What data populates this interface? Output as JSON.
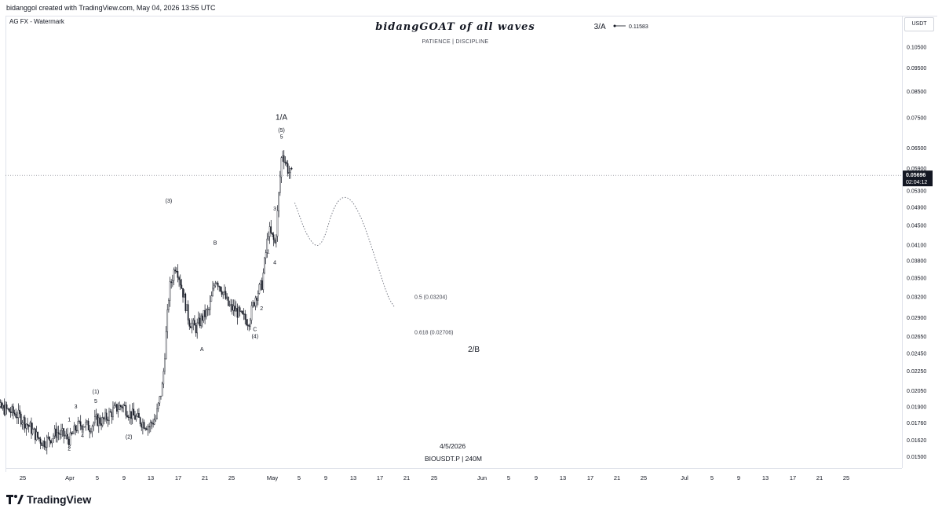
{
  "header": {
    "credit": "bidanggol created with TradingView.com, May 04, 2026 13:55 UTC"
  },
  "watermark": {
    "label": "AG FX - Watermark",
    "title": "bidangGOAT of all waves",
    "subtitle": "PATIENCE | DISCIPLINE"
  },
  "currency": "USDT",
  "legend": {
    "date": "4/5/2026",
    "symbol": "BIOUSDT.P | 240M"
  },
  "footer": {
    "brand": "TradingView"
  },
  "colors": {
    "candle": "#131722",
    "grid_line": "#e0e3eb",
    "price_tag_bg": "#131722",
    "dotted_line": "#787b86"
  },
  "chart_data": {
    "type": "candlestick",
    "symbol": "BIOUSDT.P",
    "interval": "240M",
    "y_axis": {
      "scale": "log",
      "ticks": [
        "0.11500",
        "0.10500",
        "0.09500",
        "0.08500",
        "0.07500",
        "0.06500",
        "0.05900",
        "0.05300",
        "0.04900",
        "0.04500",
        "0.04100",
        "0.03800",
        "0.03500",
        "0.03200",
        "0.02900",
        "0.02650",
        "0.02450",
        "0.02250",
        "0.02050",
        "0.01900",
        "0.01760",
        "0.01620",
        "0.01500"
      ],
      "ylim": [
        0.0146,
        0.118
      ]
    },
    "x_axis": {
      "ticks": [
        "25",
        "Apr",
        "5",
        "9",
        "13",
        "17",
        "21",
        "25",
        "May",
        "5",
        "9",
        "13",
        "17",
        "21",
        "25",
        "Jun",
        "5",
        "9",
        "13",
        "17",
        "21",
        "25",
        "Jul",
        "5",
        "9",
        "13",
        "17",
        "21",
        "25"
      ]
    },
    "current_price": {
      "value": "0.05696",
      "countdown": "02:04:12"
    },
    "price_path": [
      [
        "Mar 22",
        0.0188
      ],
      [
        "Mar 24",
        0.0183
      ],
      [
        "Mar 25",
        0.0178
      ],
      [
        "Mar 26",
        0.0172
      ],
      [
        "Mar 27",
        0.0165
      ],
      [
        "Mar 28",
        0.016
      ],
      [
        "Mar 29",
        0.0163
      ],
      [
        "Mar 30",
        0.0168
      ],
      [
        "Mar 31",
        0.0166
      ],
      [
        "Apr 1",
        0.0162
      ],
      [
        "Apr 2",
        0.0172
      ],
      [
        "Apr 3",
        0.0175
      ],
      [
        "Apr 4",
        0.0172
      ],
      [
        "Apr 5",
        0.0178
      ],
      [
        "Apr 6",
        0.0177
      ],
      [
        "Apr 7",
        0.0183
      ],
      [
        "Apr 8",
        0.0188
      ],
      [
        "Apr 9",
        0.0191
      ],
      [
        "Apr 10",
        0.0184
      ],
      [
        "Apr 11",
        0.018
      ],
      [
        "Apr 12",
        0.0176
      ],
      [
        "Apr 13",
        0.0173
      ],
      [
        "Apr 14",
        0.018
      ],
      [
        "Apr 15",
        0.021
      ],
      [
        "Apr 16",
        0.033
      ],
      [
        "Apr 17",
        0.0375
      ],
      [
        "Apr 18",
        0.033
      ],
      [
        "Apr 19",
        0.0285
      ],
      [
        "Apr 20",
        0.0275
      ],
      [
        "Apr 21",
        0.029
      ],
      [
        "Apr 22",
        0.03
      ],
      [
        "Apr 23",
        0.035
      ],
      [
        "Apr 24",
        0.033
      ],
      [
        "Apr 25",
        0.0305
      ],
      [
        "Apr 26",
        0.03
      ],
      [
        "Apr 27",
        0.029
      ],
      [
        "Apr 28",
        0.0285
      ],
      [
        "Apr 29",
        0.032
      ],
      [
        "Apr 30",
        0.034
      ],
      [
        "May 1",
        0.044
      ],
      [
        "May 2",
        0.041
      ],
      [
        "May 3",
        0.064
      ],
      [
        "May 4",
        0.058
      ],
      [
        "May 4 12:00",
        0.057
      ]
    ],
    "projection_path": [
      [
        "May 5",
        0.05
      ],
      [
        "May 7",
        0.042
      ],
      [
        "May 9",
        0.04
      ],
      [
        "May 11",
        0.05
      ],
      [
        "May 13",
        0.052
      ],
      [
        "May 15",
        0.047
      ],
      [
        "May 17",
        0.039
      ],
      [
        "May 19",
        0.032
      ],
      [
        "May 20",
        0.0305
      ]
    ],
    "wave_labels": [
      {
        "text": "1",
        "x": "Apr 1",
        "y": 0.0177
      },
      {
        "text": "2",
        "x": "Apr 1",
        "y": 0.0154
      },
      {
        "text": "3",
        "x": "Apr 2",
        "y": 0.0188
      },
      {
        "text": "4",
        "x": "Apr 3",
        "y": 0.0164
      },
      {
        "text": "(1)",
        "x": "Apr 5",
        "y": 0.0202
      },
      {
        "text": "5",
        "x": "Apr 5",
        "y": 0.0193
      },
      {
        "text": "(2)",
        "x": "Apr 10",
        "y": 0.0163
      },
      {
        "text": "(3)",
        "x": "Apr 16",
        "y": 0.05
      },
      {
        "text": "A",
        "x": "Apr 21",
        "y": 0.0247
      },
      {
        "text": "B",
        "x": "Apr 23",
        "y": 0.041
      },
      {
        "text": "C",
        "x": "Apr 29",
        "y": 0.0272
      },
      {
        "text": "(4)",
        "x": "Apr 29",
        "y": 0.0263
      },
      {
        "text": "1",
        "x": "May 1",
        "y": 0.0393
      },
      {
        "text": "2",
        "x": "Apr 30",
        "y": 0.03
      },
      {
        "text": "3",
        "x": "May 2",
        "y": 0.0482
      },
      {
        "text": "4",
        "x": "May 2",
        "y": 0.0373
      },
      {
        "text": "(5)",
        "x": "May 3",
        "y": 0.07
      },
      {
        "text": "5",
        "x": "May 3",
        "y": 0.0678
      },
      {
        "text": "1/A",
        "x": "May 3",
        "y": 0.0742
      },
      {
        "text": "2/B",
        "x": "Jun 1",
        "y": 0.0246
      },
      {
        "text": "3/A",
        "x": "Jun 20",
        "y": 0.114
      }
    ],
    "annotations": [
      {
        "text": "0.5 (0.03204)",
        "level": 0.03204
      },
      {
        "text": "0.618 (0.02706)",
        "level": 0.02706
      },
      {
        "text": "0.11583",
        "level": 0.11583
      }
    ]
  }
}
